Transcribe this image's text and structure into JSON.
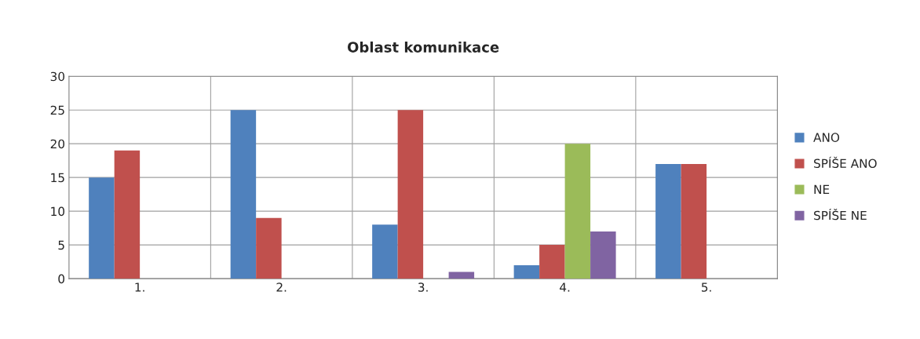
{
  "chart_data": {
    "type": "bar",
    "title": "Oblast komunikace",
    "categories": [
      "1.",
      "2.",
      "3.",
      "4.",
      "5."
    ],
    "series": [
      {
        "name": "ANO",
        "color": "#4f81bd",
        "values": [
          15,
          25,
          8,
          2,
          17
        ]
      },
      {
        "name": "SPÍŠE ANO",
        "color": "#c0504d",
        "values": [
          19,
          9,
          25,
          5,
          17
        ]
      },
      {
        "name": "NE",
        "color": "#9bbb59",
        "values": [
          0,
          0,
          0,
          20,
          0
        ]
      },
      {
        "name": "SPÍŠE NE",
        "color": "#8064a2",
        "values": [
          0,
          0,
          1,
          7,
          0
        ]
      }
    ],
    "ylim": [
      0,
      30
    ],
    "yticks": [
      0,
      5,
      10,
      15,
      20,
      25,
      30
    ],
    "grid": true,
    "legend": "right"
  }
}
